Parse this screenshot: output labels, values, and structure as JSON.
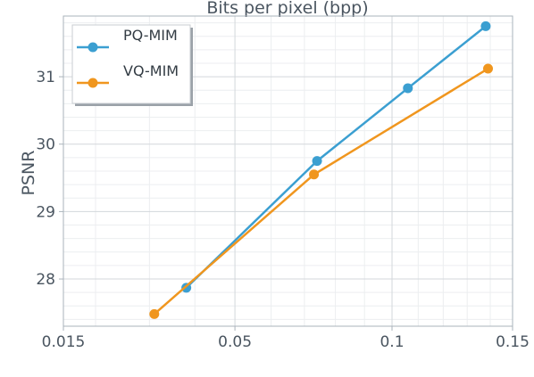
{
  "chart_data": {
    "type": "line",
    "title": "",
    "xlabel": "Bits per pixel (bpp)",
    "ylabel": "PSNR",
    "xlim": [
      0.015,
      0.15
    ],
    "ylim": [
      27.3,
      31.9
    ],
    "x_ticks": [
      0.015,
      0.05,
      0.1,
      0.15
    ],
    "x_tick_labels": [
      "0.015",
      "0.05",
      "0.1",
      "0.15"
    ],
    "y_ticks": [
      28,
      29,
      30,
      31
    ],
    "y_tick_labels": [
      "28",
      "29",
      "30",
      "31"
    ],
    "grid": true,
    "legend_position": "top-left",
    "series": [
      {
        "name": "PQ-MIM",
        "color": "#3b9fd1",
        "x": [
          0.038,
          0.074,
          0.106,
          0.138
        ],
        "y": [
          27.87,
          29.75,
          30.83,
          31.75
        ]
      },
      {
        "name": "VQ-MIM",
        "color": "#f0961e",
        "x": [
          0.031,
          0.073,
          0.139
        ],
        "y": [
          27.48,
          29.55,
          31.12
        ]
      }
    ]
  }
}
